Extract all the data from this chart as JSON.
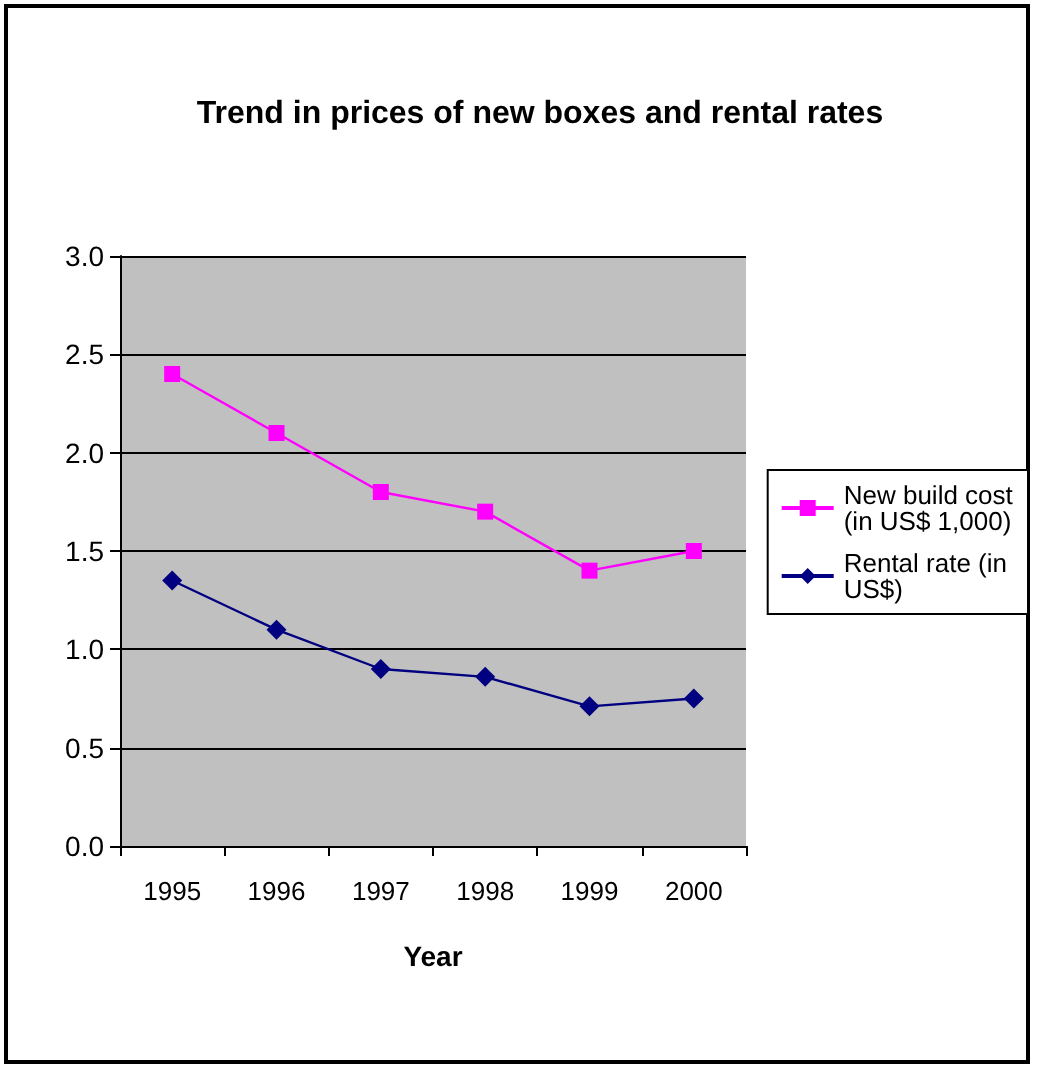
{
  "chart_data": {
    "type": "line",
    "title": "Trend in prices of new boxes and rental rates",
    "xlabel": "Year",
    "categories": [
      "1995",
      "1996",
      "1997",
      "1998",
      "1999",
      "2000"
    ],
    "series": [
      {
        "name": "New build cost (in US$ 1,000)",
        "color": "#ff00ff",
        "marker": "square",
        "values": [
          2.4,
          2.1,
          1.8,
          1.7,
          1.4,
          1.5
        ]
      },
      {
        "name": "Rental rate (in US$)",
        "color": "#000080",
        "marker": "diamond",
        "values": [
          1.35,
          1.1,
          0.9,
          0.86,
          0.71,
          0.75
        ]
      }
    ],
    "ylim": [
      0,
      3
    ],
    "yticks": [
      {
        "value": 0,
        "label": "0.0"
      },
      {
        "value": 0.5,
        "label": "0.5"
      },
      {
        "value": 1,
        "label": "1.0"
      },
      {
        "value": 1.5,
        "label": "1.5"
      },
      {
        "value": 2,
        "label": "2.0"
      },
      {
        "value": 2.5,
        "label": "2.5"
      },
      {
        "value": 3,
        "label": "3.0"
      }
    ],
    "grid": "y",
    "legend": "right"
  }
}
